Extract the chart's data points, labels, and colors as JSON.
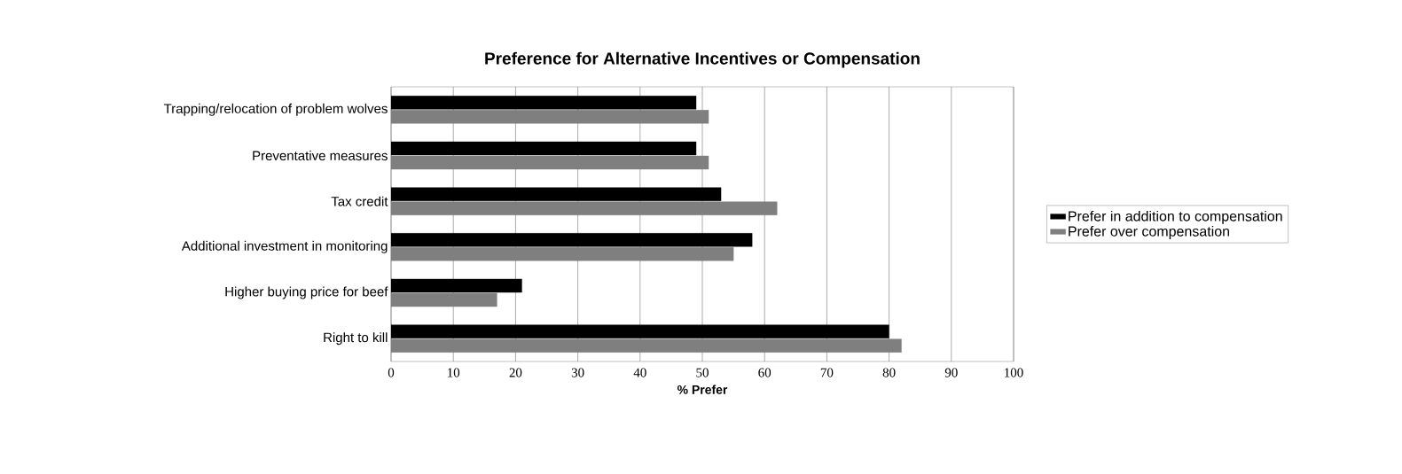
{
  "chart_data": {
    "type": "bar",
    "orientation": "horizontal",
    "title": "Preference for Alternative Incentives or Compensation",
    "xlabel": "% Prefer",
    "categories": [
      "Trapping/relocation of problem wolves",
      "Preventative measures",
      "Tax credit",
      "Additional investment in monitoring",
      "Higher buying price for beef",
      "Right to kill"
    ],
    "series": [
      {
        "name": "Prefer in addition to compensation",
        "color": "#000000",
        "values": [
          49,
          49,
          53,
          58,
          21,
          80
        ]
      },
      {
        "name": "Prefer over compensation",
        "color": "#7f7f7f",
        "values": [
          51,
          51,
          62,
          55,
          17,
          82
        ]
      }
    ],
    "xlim": [
      0,
      100
    ],
    "xticks": [
      0,
      10,
      20,
      30,
      40,
      50,
      60,
      70,
      80,
      90,
      100
    ],
    "grid": "x",
    "legend": "right"
  }
}
